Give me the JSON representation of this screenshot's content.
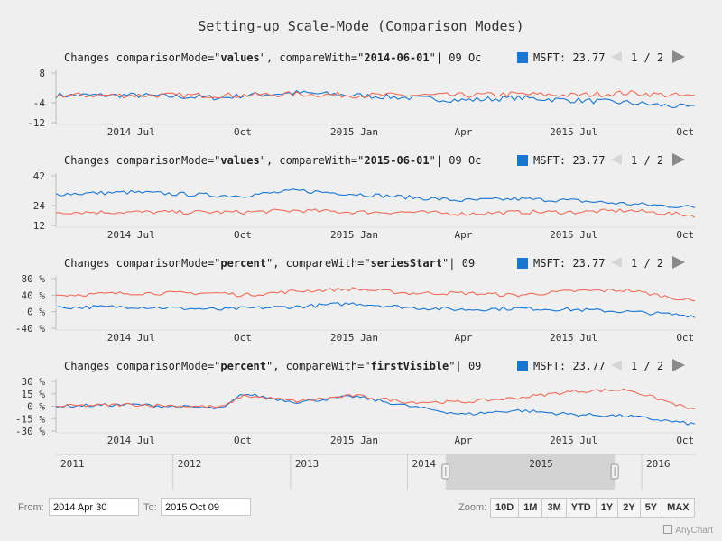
{
  "title": "Setting-up Scale-Mode (Comparison Modes)",
  "colors": {
    "msft": "#1976d2",
    "compare": "#ef6c5a"
  },
  "panels": [
    {
      "prefix": "Changes comparisonMode=\"",
      "mode": "values",
      "mid": "\", compareWith=\"",
      "compare": "2014-06-01",
      "suffix": "\"|  09 Oc",
      "y_ticks": [
        "8",
        "-4",
        "-12"
      ],
      "y_values": [
        8,
        -4,
        -12
      ],
      "ylim": [
        -12,
        8
      ]
    },
    {
      "prefix": "Changes comparisonMode=\"",
      "mode": "values",
      "mid": "\", compareWith=\"",
      "compare": "2015-06-01",
      "suffix": "\"|  09 Oc",
      "y_ticks": [
        "42",
        "24",
        "12"
      ],
      "y_values": [
        42,
        24,
        12
      ],
      "ylim": [
        12,
        42
      ]
    },
    {
      "prefix": "Changes comparisonMode=\"",
      "mode": "percent",
      "mid": "\", compareWith=\"",
      "compare": "seriesStart",
      "suffix": "\"|  09",
      "y_ticks": [
        "80 %",
        "40 %",
        "0 %",
        "-40 %"
      ],
      "y_values": [
        80,
        40,
        0,
        -40
      ],
      "ylim": [
        -40,
        80
      ]
    },
    {
      "prefix": "Changes comparisonMode=\"",
      "mode": "percent",
      "mid": "\", compareWith=\"",
      "compare": "firstVisible",
      "suffix": "\"|  09",
      "y_ticks": [
        "30 %",
        "15 %",
        "0 %",
        "-15 %",
        "-30 %"
      ],
      "y_values": [
        30,
        15,
        0,
        -15,
        -30
      ],
      "ylim": [
        -30,
        30
      ]
    }
  ],
  "legend": {
    "series": "MSFT: 23.77",
    "paging": "1 / 2"
  },
  "x_ticks": [
    "2014 Jul",
    "Oct",
    "2015 Jan",
    "Apr",
    "2015 Jul",
    "Oct"
  ],
  "x_tick_dates": [
    "2014-07-01",
    "2014-10-01",
    "2015-01-01",
    "2015-04-01",
    "2015-07-01",
    "2015-10-01"
  ],
  "x_range": [
    "2014-04-30",
    "2015-10-09"
  ],
  "scroller": {
    "years": [
      "2011",
      "2012",
      "2013",
      "2014",
      "2015",
      "2016"
    ],
    "selected": [
      "2014-04-30",
      "2015-10-09"
    ]
  },
  "range_selector": {
    "from_label": "From:",
    "from_value": "2014 Apr 30",
    "to_label": "To:",
    "to_value": "2015 Oct 09"
  },
  "zoom": {
    "label": "Zoom:",
    "buttons": [
      "10D",
      "1M",
      "3M",
      "YTD",
      "1Y",
      "2Y",
      "5Y",
      "MAX"
    ]
  },
  "credits": "AnyChart",
  "chart_data": [
    {
      "type": "line",
      "x": [
        "2014-04-30",
        "2014-07-01",
        "2014-09-15",
        "2014-10-01",
        "2014-11-15",
        "2015-01-01",
        "2015-02-15",
        "2015-04-01",
        "2015-05-15",
        "2015-07-01",
        "2015-08-15",
        "2015-10-09"
      ],
      "ylim": [
        -12,
        8
      ],
      "series": [
        {
          "name": "MSFT",
          "values": [
            -1,
            -1,
            -2,
            -1,
            0,
            -1,
            -2,
            -3,
            -2,
            -3,
            -4,
            -6
          ]
        },
        {
          "values": [
            -1,
            -1,
            -1,
            -1,
            -0.5,
            -1,
            -1,
            -1,
            -0.5,
            -1,
            0,
            -1.5
          ]
        }
      ]
    },
    {
      "type": "line",
      "x": [
        "2014-04-30",
        "2014-07-01",
        "2014-09-15",
        "2014-10-01",
        "2014-11-15",
        "2015-01-01",
        "2015-02-15",
        "2015-04-01",
        "2015-05-15",
        "2015-07-01",
        "2015-08-15",
        "2015-10-09"
      ],
      "ylim": [
        12,
        42
      ],
      "series": [
        {
          "name": "MSFT",
          "values": [
            31,
            32,
            30,
            30,
            33,
            31,
            29,
            27,
            28,
            27,
            25,
            23
          ]
        },
        {
          "values": [
            20,
            20,
            20,
            20,
            21,
            20,
            20,
            19,
            20,
            20,
            21,
            18
          ]
        }
      ]
    },
    {
      "type": "line",
      "x": [
        "2014-04-30",
        "2014-07-01",
        "2014-09-15",
        "2014-10-01",
        "2014-11-15",
        "2015-01-01",
        "2015-02-15",
        "2015-04-01",
        "2015-05-15",
        "2015-07-01",
        "2015-08-15",
        "2015-10-09"
      ],
      "ylim": [
        -40,
        80
      ],
      "series": [
        {
          "name": "MSFT",
          "values": [
            10,
            12,
            5,
            8,
            12,
            20,
            10,
            5,
            8,
            5,
            0,
            -10
          ]
        },
        {
          "values": [
            40,
            45,
            45,
            40,
            50,
            55,
            45,
            45,
            40,
            50,
            52,
            25
          ]
        }
      ]
    },
    {
      "type": "line",
      "x": [
        "2014-04-30",
        "2014-07-01",
        "2014-09-15",
        "2014-10-01",
        "2014-11-15",
        "2015-01-01",
        "2015-02-15",
        "2015-04-01",
        "2015-05-15",
        "2015-07-01",
        "2015-08-15",
        "2015-10-09"
      ],
      "ylim": [
        -30,
        30
      ],
      "series": [
        {
          "name": "MSFT",
          "values": [
            0,
            2,
            -3,
            15,
            5,
            12,
            0,
            -10,
            -5,
            -10,
            -12,
            -22
          ]
        },
        {
          "values": [
            0,
            2,
            -1,
            13,
            6,
            13,
            5,
            5,
            10,
            18,
            20,
            -5
          ]
        }
      ]
    }
  ]
}
